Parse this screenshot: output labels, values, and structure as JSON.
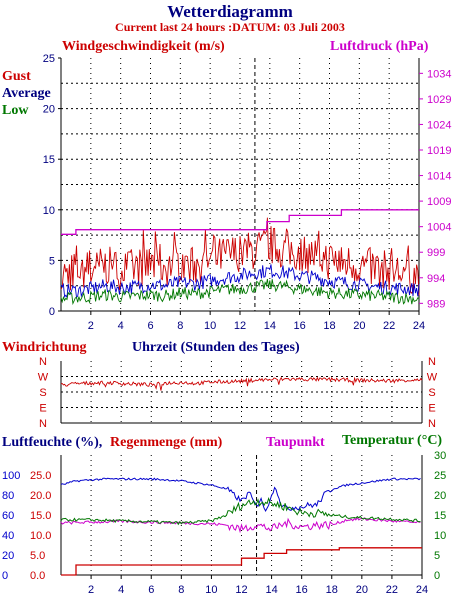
{
  "title": "Wetterdiagramm",
  "subtitle": "Current last 24 hours :DATUM: 03 Juli 2003",
  "colors": {
    "navy": "#000080",
    "red": "#cc0000",
    "magenta": "#cc00cc",
    "green": "#007700",
    "blue": "#0000cc",
    "grid": "#000000"
  },
  "chart_data": [
    {
      "type": "line",
      "name": "wind-pressure",
      "labels": {
        "left_title": "Windgeschwindigkeit (m/s)",
        "right_title": "Luftdruck (hPa)",
        "legend_gust": "Gust",
        "legend_average": "Average",
        "legend_low": "Low"
      },
      "x_ticks": [
        "2",
        "4",
        "6",
        "8",
        "10",
        "12",
        "14",
        "16",
        "18",
        "20",
        "22",
        "24"
      ],
      "x_range": [
        0,
        24
      ],
      "y_ticks_left": [
        "0",
        "5",
        "10",
        "15",
        "20",
        "25"
      ],
      "ylim_left": [
        0,
        25
      ],
      "y_ticks_right": [
        "989",
        "994",
        "999",
        "1004",
        "1009",
        "1014",
        "1019",
        "1024",
        "1029",
        "1034"
      ],
      "ylim_right": [
        987.5,
        1037
      ],
      "marker_x": 13,
      "series": [
        {
          "name": "Gust",
          "color": "#cc0000",
          "x": [
            0,
            1,
            2,
            3,
            4,
            5,
            6,
            7,
            8,
            9,
            10,
            11,
            12,
            13,
            14,
            15,
            16,
            17,
            18,
            19,
            20,
            21,
            22,
            23,
            24
          ],
          "y": [
            3.5,
            4,
            4.2,
            4.5,
            4,
            4.3,
            4.6,
            4.4,
            4.8,
            4.5,
            5,
            5.5,
            5.8,
            6,
            6.5,
            6,
            5.8,
            5.5,
            5,
            4.8,
            4.5,
            4.2,
            4,
            3.8,
            3.5
          ]
        },
        {
          "name": "Average",
          "color": "#0000cc",
          "x": [
            0,
            1,
            2,
            3,
            4,
            5,
            6,
            7,
            8,
            9,
            10,
            11,
            12,
            13,
            14,
            15,
            16,
            17,
            18,
            19,
            20,
            21,
            22,
            23,
            24
          ],
          "y": [
            2,
            2,
            2.2,
            2.5,
            2.3,
            2.4,
            2.6,
            2.5,
            2.8,
            2.7,
            3,
            3.3,
            3.5,
            3.8,
            4,
            3.8,
            3.5,
            3.3,
            3,
            2.8,
            2.6,
            2.4,
            2.3,
            2.2,
            2.1
          ]
        },
        {
          "name": "Low",
          "color": "#007700",
          "x": [
            0,
            1,
            2,
            3,
            4,
            5,
            6,
            7,
            8,
            9,
            10,
            11,
            12,
            13,
            14,
            15,
            16,
            17,
            18,
            19,
            20,
            21,
            22,
            23,
            24
          ],
          "y": [
            1.2,
            1.3,
            1.4,
            1.6,
            1.4,
            1.5,
            1.6,
            1.5,
            1.8,
            1.7,
            1.9,
            2.1,
            2.2,
            2.4,
            2.6,
            2.4,
            2.2,
            2,
            1.8,
            1.7,
            1.6,
            1.5,
            1.4,
            1.3,
            1.2
          ]
        },
        {
          "name": "Luftdruck",
          "color": "#cc00cc",
          "axis": "right",
          "x": [
            0,
            0.3,
            1,
            1,
            13.8,
            13.8,
            15.3,
            15.3,
            18.8,
            18.8,
            24
          ],
          "y": [
            1002.5,
            1002.5,
            1002.5,
            1003.4,
            1003.4,
            1005,
            1005,
            1006.2,
            1006.2,
            1007.3,
            1007.3
          ]
        }
      ]
    },
    {
      "type": "line",
      "name": "wind-direction",
      "labels": {
        "left_title": "Windrichtung",
        "center_title": "Uhrzeit (Stunden des Tages)"
      },
      "y_ticks": [
        "N",
        "W",
        "S",
        "E",
        "N"
      ],
      "x_range": [
        0,
        24
      ],
      "ylim": [
        0,
        360
      ],
      "series": [
        {
          "name": "Windrichtung",
          "color": "#cc0000",
          "x": [
            0,
            1,
            2,
            3,
            4,
            5,
            6,
            7,
            8,
            9,
            10,
            11,
            12,
            13,
            14,
            15,
            16,
            17,
            18,
            19,
            20,
            21,
            22,
            23,
            24
          ],
          "y": [
            220,
            228,
            232,
            235,
            230,
            226,
            222,
            232,
            236,
            230,
            238,
            240,
            243,
            250,
            252,
            255,
            254,
            253,
            252,
            250,
            248,
            246,
            245,
            250,
            248
          ]
        }
      ]
    },
    {
      "type": "line",
      "name": "humidity-rain-temp",
      "labels": {
        "left_title_humidity": "Luftfeuchte (%),",
        "left_title_rain": "Regenmenge (mm)",
        "center_title": "Taupunkt",
        "right_title": "Temperatur (°C)"
      },
      "x_ticks": [
        "2",
        "4",
        "6",
        "8",
        "10",
        "12",
        "14",
        "16",
        "18",
        "20",
        "22",
        "24"
      ],
      "x_range": [
        0,
        24
      ],
      "y_ticks_humidity": [
        "0",
        "20",
        "40",
        "60",
        "80",
        "100"
      ],
      "y_ticks_rain": [
        "0.0",
        "5.0",
        "10.0",
        "15.0",
        "20.0",
        "25.0"
      ],
      "ylim_rain": [
        0,
        30
      ],
      "y_ticks_right": [
        "0",
        "5",
        "10",
        "15",
        "20",
        "25",
        "30"
      ],
      "ylim_right": [
        0,
        30
      ],
      "marker_x": 13,
      "series": [
        {
          "name": "Luftfeuchte",
          "color": "#0000cc",
          "axis": "rain",
          "x": [
            0,
            1,
            2,
            3,
            4,
            5,
            6,
            7,
            8,
            9,
            10,
            11,
            12,
            12.5,
            13,
            13.3,
            13.6,
            14,
            14.3,
            14.6,
            15,
            15.5,
            16,
            16.5,
            17,
            17.5,
            18,
            19,
            20,
            21,
            22,
            23,
            24
          ],
          "y": [
            22.5,
            23.5,
            23.8,
            24,
            24,
            24,
            24,
            23.8,
            23.5,
            23,
            22.5,
            21.5,
            18.5,
            20.5,
            17,
            19.5,
            15.5,
            20.5,
            22,
            18,
            16.5,
            17,
            17,
            17.5,
            17.5,
            20,
            21.5,
            22.5,
            23,
            23.5,
            24,
            24,
            24
          ]
        },
        {
          "name": "Regenmenge",
          "color": "#cc0000",
          "axis": "rain",
          "x": [
            0,
            0.4,
            1,
            1,
            12,
            12,
            13.5,
            13.5,
            15,
            15,
            18.5,
            18.5,
            24
          ],
          "y": [
            0,
            0,
            0,
            2.5,
            2.5,
            4.2,
            4.2,
            5.4,
            5.4,
            6.3,
            6.3,
            6.8,
            6.8
          ]
        },
        {
          "name": "Taupunkt",
          "color": "#cc00cc",
          "axis": "right",
          "x": [
            0,
            2,
            4,
            6,
            8,
            10,
            11,
            12,
            13,
            14,
            15,
            16,
            17,
            18,
            19,
            20,
            22,
            24
          ],
          "y": [
            13,
            13.2,
            13.4,
            13.2,
            13,
            12.8,
            12.5,
            11.5,
            12.5,
            11.5,
            13,
            12,
            12.5,
            12.5,
            13.8,
            14,
            13.5,
            13
          ]
        },
        {
          "name": "Temperatur",
          "color": "#007700",
          "axis": "right",
          "x": [
            0,
            2,
            4,
            6,
            8,
            10,
            11,
            12,
            13,
            14,
            15,
            16,
            17,
            18,
            19,
            20,
            22,
            24
          ],
          "y": [
            13.8,
            13.8,
            13.5,
            13.3,
            13,
            13.5,
            15,
            17.5,
            18.5,
            18,
            17,
            15.5,
            15.5,
            15,
            14.5,
            14.3,
            14,
            13.5
          ]
        }
      ]
    }
  ]
}
